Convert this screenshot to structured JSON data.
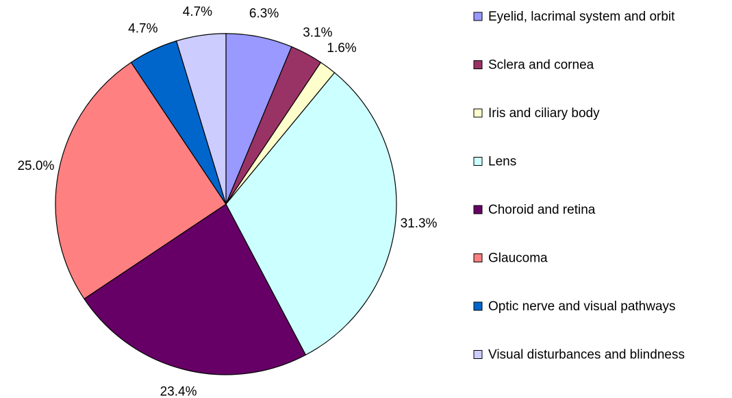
{
  "chart_data": {
    "type": "pie",
    "categories": [
      "Eyelid, lacrimal system and orbit",
      "Sclera and cornea",
      "Iris and ciliary body",
      "Lens",
      "Choroid and retina",
      "Glaucoma",
      "Optic nerve and visual pathways",
      "Visual disturbances and blindness"
    ],
    "values": [
      6.3,
      3.1,
      1.6,
      31.3,
      23.4,
      25.0,
      4.7,
      4.7
    ],
    "value_labels": [
      "6.3%",
      "3.1%",
      "1.6%",
      "31.3%",
      "23.4%",
      "25.0%",
      "4.7%",
      "4.7%"
    ],
    "colors": [
      "#9999ff",
      "#993366",
      "#ffffcc",
      "#ccffff",
      "#660066",
      "#ff8080",
      "#0066cc",
      "#ccccff"
    ],
    "legend": "right"
  }
}
